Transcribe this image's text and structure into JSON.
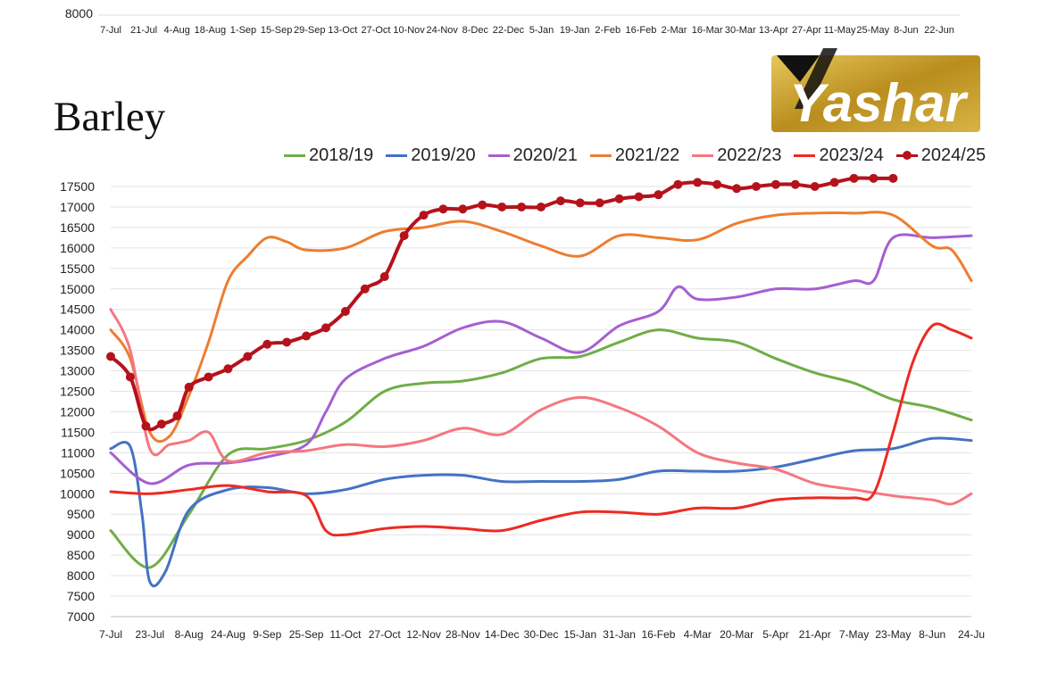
{
  "top_strip": {
    "ytick": "8000",
    "xticks": [
      "7-Jul",
      "21-Jul",
      "4-Aug",
      "18-Aug",
      "1-Sep",
      "15-Sep",
      "29-Sep",
      "13-Oct",
      "27-Oct",
      "10-Nov",
      "24-Nov",
      "8-Dec",
      "22-Dec",
      "5-Jan",
      "19-Jan",
      "2-Feb",
      "16-Feb",
      "2-Mar",
      "16-Mar",
      "30-Mar",
      "13-Apr",
      "27-Apr",
      "11-May",
      "25-May",
      "8-Jun",
      "22-Jun"
    ]
  },
  "logo": {
    "text": "Yashar",
    "gold": "#c9a227",
    "black": "#111111"
  },
  "chart_data": {
    "type": "line",
    "title": "Barley",
    "legend_placement": "top-right",
    "grid": true,
    "ylim": [
      7000,
      17500
    ],
    "yticks": [
      7000,
      7500,
      8000,
      8500,
      9000,
      9500,
      10000,
      10500,
      11000,
      11500,
      12000,
      12500,
      13000,
      13500,
      14000,
      14500,
      15000,
      15500,
      16000,
      16500,
      17000,
      17500
    ],
    "xticks": [
      "7-Jul",
      "23-Jul",
      "8-Aug",
      "24-Aug",
      "9-Sep",
      "25-Sep",
      "11-Oct",
      "27-Oct",
      "12-Nov",
      "28-Nov",
      "14-Dec",
      "30-Dec",
      "15-Jan",
      "31-Jan",
      "16-Feb",
      "4-Mar",
      "20-Mar",
      "5-Apr",
      "21-Apr",
      "7-May",
      "23-May",
      "8-Jun",
      "24-Ju"
    ],
    "series": [
      {
        "name": "2018/19",
        "color": "#70ad47",
        "markers": false,
        "x": [
          0,
          1,
          2,
          3,
          4,
          5,
          6,
          7,
          8,
          9,
          10,
          11,
          12,
          13,
          14,
          15,
          16,
          17,
          18,
          19,
          20,
          21,
          22
        ],
        "values": [
          9100,
          8200,
          9500,
          10950,
          11100,
          11300,
          11750,
          12500,
          12700,
          12750,
          12950,
          13300,
          13350,
          13700,
          14000,
          13800,
          13700,
          13300,
          12950,
          12700,
          12300,
          12100,
          11800
        ]
      },
      {
        "name": "2019/20",
        "color": "#4472c4",
        "markers": false,
        "x": [
          0,
          0.5,
          0.8,
          1,
          1.4,
          2,
          3,
          4,
          5,
          6,
          7,
          8,
          9,
          10,
          11,
          12,
          13,
          14,
          15,
          16,
          17,
          18,
          19,
          20,
          21,
          22
        ],
        "values": [
          11100,
          11150,
          9500,
          7850,
          8100,
          9600,
          10100,
          10150,
          10000,
          10100,
          10350,
          10450,
          10450,
          10300,
          10300,
          10300,
          10350,
          10550,
          10550,
          10550,
          10650,
          10850,
          11050,
          11100,
          11350,
          11300
        ]
      },
      {
        "name": "2020/21",
        "color": "#a55fd1",
        "markers": false,
        "x": [
          0,
          1,
          2,
          3,
          4,
          5,
          5.5,
          6,
          7,
          8,
          9,
          10,
          11,
          12,
          13,
          14,
          14.5,
          15,
          16,
          17,
          18,
          19,
          19.5,
          20,
          21,
          22
        ],
        "values": [
          11000,
          10250,
          10700,
          10750,
          10900,
          11200,
          12000,
          12800,
          13300,
          13600,
          14050,
          14200,
          13800,
          13450,
          14100,
          14450,
          15050,
          14750,
          14800,
          15000,
          15000,
          15200,
          15200,
          16250,
          16250,
          16300
        ]
      },
      {
        "name": "2021/22",
        "color": "#ed7d31",
        "markers": false,
        "x": [
          0,
          0.5,
          1,
          1.5,
          2,
          2.5,
          3,
          3.5,
          4,
          4.5,
          5,
          6,
          7,
          8,
          9,
          10,
          11,
          12,
          13,
          14,
          15,
          16,
          17,
          18,
          19,
          20,
          21,
          21.5,
          22
        ],
        "values": [
          14000,
          13300,
          11500,
          11400,
          12400,
          13700,
          15200,
          15800,
          16250,
          16150,
          15950,
          16000,
          16400,
          16500,
          16650,
          16400,
          16050,
          15800,
          16300,
          16250,
          16200,
          16600,
          16800,
          16850,
          16850,
          16800,
          16050,
          15950,
          15200
        ]
      },
      {
        "name": "2022/23",
        "color": "#f4777f",
        "markers": false,
        "x": [
          0,
          0.5,
          1,
          1.5,
          2,
          2.5,
          3,
          4,
          5,
          6,
          7,
          8,
          9,
          10,
          11,
          12,
          13,
          14,
          15,
          16,
          17,
          18,
          19,
          20,
          21,
          21.5,
          22
        ],
        "values": [
          14500,
          13500,
          11100,
          11200,
          11300,
          11500,
          10800,
          11000,
          11050,
          11200,
          11150,
          11300,
          11600,
          11450,
          12050,
          12350,
          12100,
          11650,
          11000,
          10750,
          10600,
          10250,
          10100,
          9950,
          9850,
          9750,
          10000
        ]
      },
      {
        "name": "2023/24",
        "color": "#ee2a24",
        "markers": false,
        "x": [
          0,
          1,
          2,
          3,
          4,
          5,
          5.5,
          6,
          7,
          8,
          9,
          10,
          11,
          12,
          13,
          14,
          15,
          16,
          17,
          18,
          19,
          19.5,
          20,
          20.5,
          21,
          21.5,
          22
        ],
        "values": [
          10050,
          10000,
          10100,
          10200,
          10050,
          9950,
          9100,
          9000,
          9150,
          9200,
          9150,
          9100,
          9350,
          9550,
          9550,
          9500,
          9650,
          9650,
          9850,
          9900,
          9900,
          10000,
          11500,
          13200,
          14100,
          14000,
          13800
        ]
      },
      {
        "name": "2024/25",
        "color": "#b5121b",
        "markers": true,
        "x": [
          0,
          0.5,
          0.9,
          1.3,
          1.7,
          2,
          2.5,
          3,
          3.5,
          4,
          4.5,
          5,
          5.5,
          6,
          6.5,
          7,
          7.5,
          8,
          8.5,
          9,
          9.5,
          10,
          10.5,
          11,
          11.5,
          12,
          12.5,
          13,
          13.5,
          14,
          14.5,
          15,
          15.5,
          16,
          16.5,
          17,
          17.5,
          18,
          18.5,
          19,
          19.5,
          20
        ],
        "values": [
          13350,
          12850,
          11650,
          11700,
          11900,
          12600,
          12850,
          13050,
          13350,
          13650,
          13700,
          13850,
          14050,
          14450,
          15000,
          15300,
          16300,
          16800,
          16950,
          16950,
          17050,
          17000,
          17000,
          17000,
          17150,
          17100,
          17100,
          17200,
          17250,
          17300,
          17550,
          17600,
          17550,
          17450,
          17500,
          17550,
          17550,
          17500,
          17600,
          17700,
          17700,
          17700
        ]
      }
    ]
  }
}
